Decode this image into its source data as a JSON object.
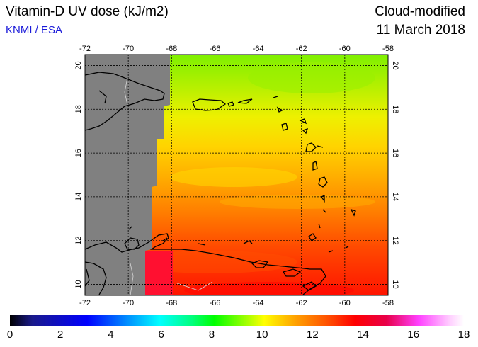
{
  "header": {
    "title": "Vitamin-D UV dose (kJ/m2)",
    "organization": "KNMI / ESA",
    "mode": "Cloud-modified",
    "date": "11 March 2018"
  },
  "map": {
    "lon_ticks": [
      "-72",
      "-70",
      "-68",
      "-66",
      "-64",
      "-62",
      "-60",
      "-58"
    ],
    "lat_ticks": [
      "10",
      "12",
      "14",
      "16",
      "18",
      "20"
    ],
    "no_data_color": "#808080"
  },
  "colorbar": {
    "labels": [
      "0",
      "2",
      "4",
      "6",
      "8",
      "10",
      "12",
      "14",
      "16",
      "18"
    ],
    "min": 0,
    "max": 18
  }
}
